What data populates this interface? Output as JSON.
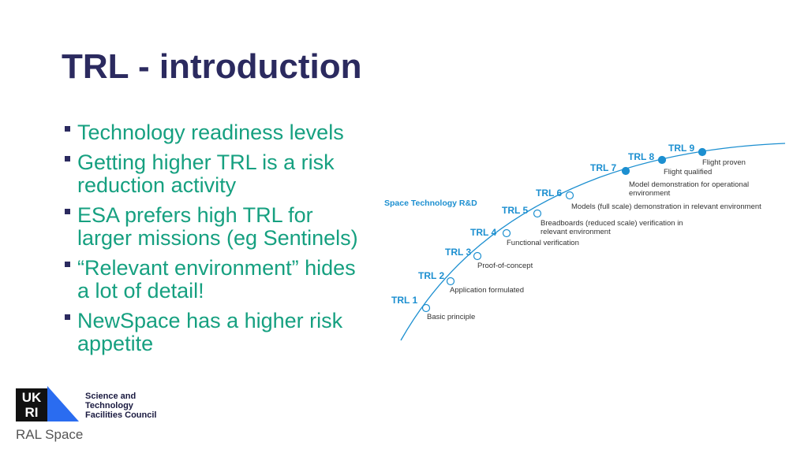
{
  "title": "TRL - introduction",
  "bullets": [
    "Technology readiness levels",
    "Getting higher TRL is a risk reduction activity",
    "ESA prefers high TRL for larger missions (eg Sentinels)",
    "“Relevant environment” hides a lot of detail!",
    "NewSpace has a higher risk appetite"
  ],
  "diagram": {
    "header": "Space Technology R&D",
    "levels": [
      {
        "label": "TRL 1",
        "description": "Basic principle"
      },
      {
        "label": "TRL 2",
        "description": "Application formulated"
      },
      {
        "label": "TRL 3",
        "description": "Proof-of-concept"
      },
      {
        "label": "TRL 4",
        "description": "Functional verification"
      },
      {
        "label": "TRL 5",
        "description": "Breadboards (reduced scale) verification in relevant environment"
      },
      {
        "label": "TRL 6",
        "description": "Models (full scale) demonstration in relevant environment"
      },
      {
        "label": "TRL 7",
        "description": "Model demonstration for operational environment"
      },
      {
        "label": "TRL 8",
        "description": "Flight qualified"
      },
      {
        "label": "TRL 9",
        "description": "Flight proven"
      }
    ]
  },
  "logo": {
    "mark": "UK RI",
    "org": "Science and Technology Facilities Council",
    "unit": "RAL Space"
  }
}
